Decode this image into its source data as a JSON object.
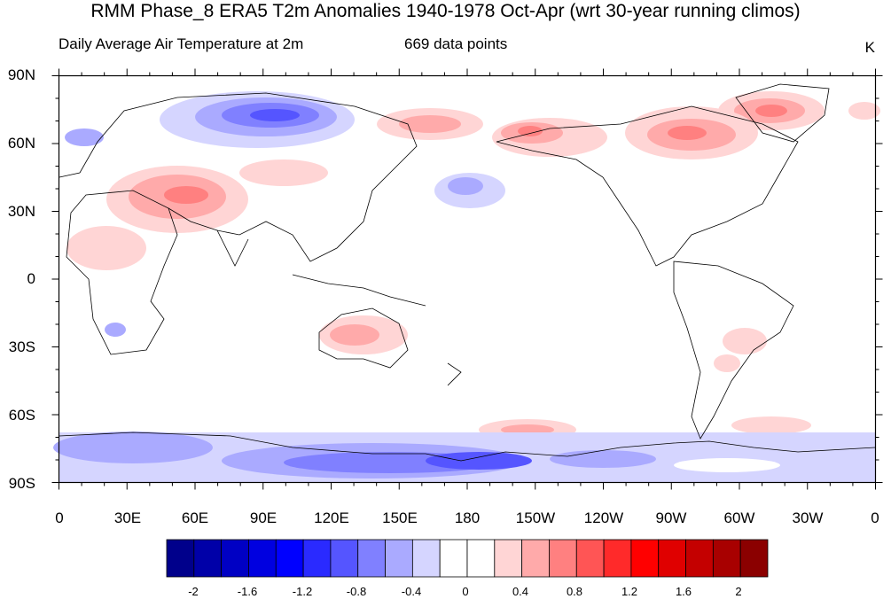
{
  "title": "RMM Phase_8 ERA5 T2m Anomalies 1940-1978 Oct-Apr (wrt 30-year running climos)",
  "subtitle_left": "Daily Average Air Temperature at 2m",
  "subtitle_center": "669 data points",
  "units": "K",
  "lat_labels": [
    "90N",
    "60N",
    "30N",
    "0",
    "30S",
    "60S",
    "90S"
  ],
  "lon_labels": [
    "0",
    "30E",
    "60E",
    "90E",
    "120E",
    "150E",
    "180",
    "150W",
    "120W",
    "90W",
    "60W",
    "30W",
    "0"
  ],
  "colorbar": {
    "labels": [
      "-2",
      "-1.6",
      "-1.2",
      "-0.8",
      "-0.4",
      "0",
      "0.4",
      "0.8",
      "1.2",
      "1.6",
      "2"
    ],
    "colors": [
      "#00008b",
      "#0000a8",
      "#0000c4",
      "#0000e0",
      "#0000ff",
      "#2a2aff",
      "#5555ff",
      "#8080ff",
      "#aaaaff",
      "#d5d5ff",
      "#ffffff",
      "#ffffff",
      "#ffd5d5",
      "#ffaaaa",
      "#ff8080",
      "#ff5555",
      "#ff2a2a",
      "#ff0000",
      "#e00000",
      "#c40000",
      "#a80000",
      "#8b0000"
    ]
  }
}
